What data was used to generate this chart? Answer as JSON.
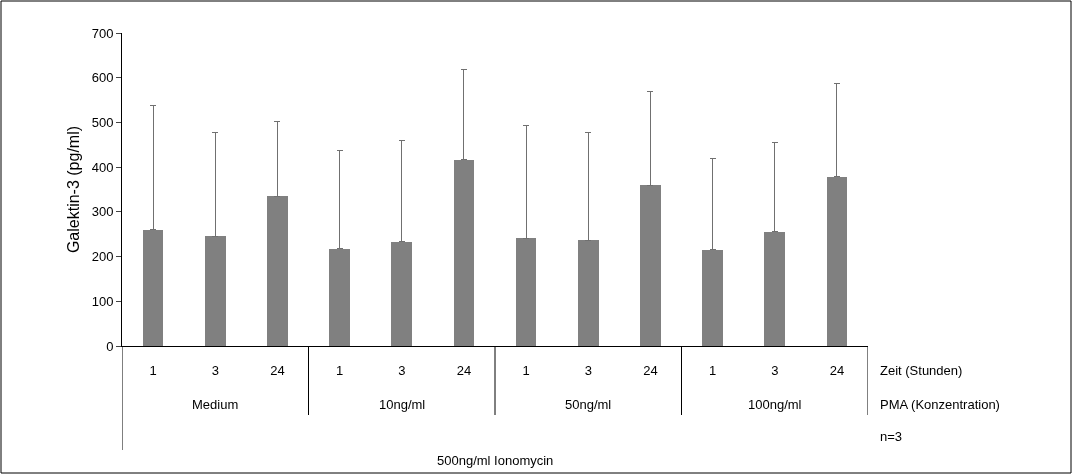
{
  "chart_data": {
    "type": "bar",
    "ylabel": "Galektin-3 (pg/ml)",
    "categories": [
      "1",
      "3",
      "24",
      "1",
      "3",
      "24",
      "1",
      "3",
      "24",
      "1",
      "3",
      "24"
    ],
    "values": [
      260,
      246,
      335,
      218,
      233,
      416,
      241,
      237,
      359,
      215,
      255,
      379
    ],
    "errors": [
      [
        260,
        537
      ],
      [
        246,
        478
      ],
      [
        335,
        503
      ],
      [
        218,
        437
      ],
      [
        233,
        460
      ],
      [
        416,
        618
      ],
      [
        241,
        494
      ],
      [
        237,
        477
      ],
      [
        359,
        569
      ],
      [
        215,
        419
      ],
      [
        255,
        456
      ],
      [
        379,
        586
      ]
    ],
    "color": "#808080",
    "ylim": [
      0,
      700
    ],
    "yticks": [
      0,
      100,
      200,
      300,
      400,
      500,
      600,
      700
    ],
    "annotations": [
      "Zeit (Stunden)",
      "PMA (Konzentration)",
      "n=3",
      "500ng/ml Ionomycin",
      "Medium",
      "10ng/ml",
      "50ng/ml",
      "100ng/ml"
    ]
  }
}
